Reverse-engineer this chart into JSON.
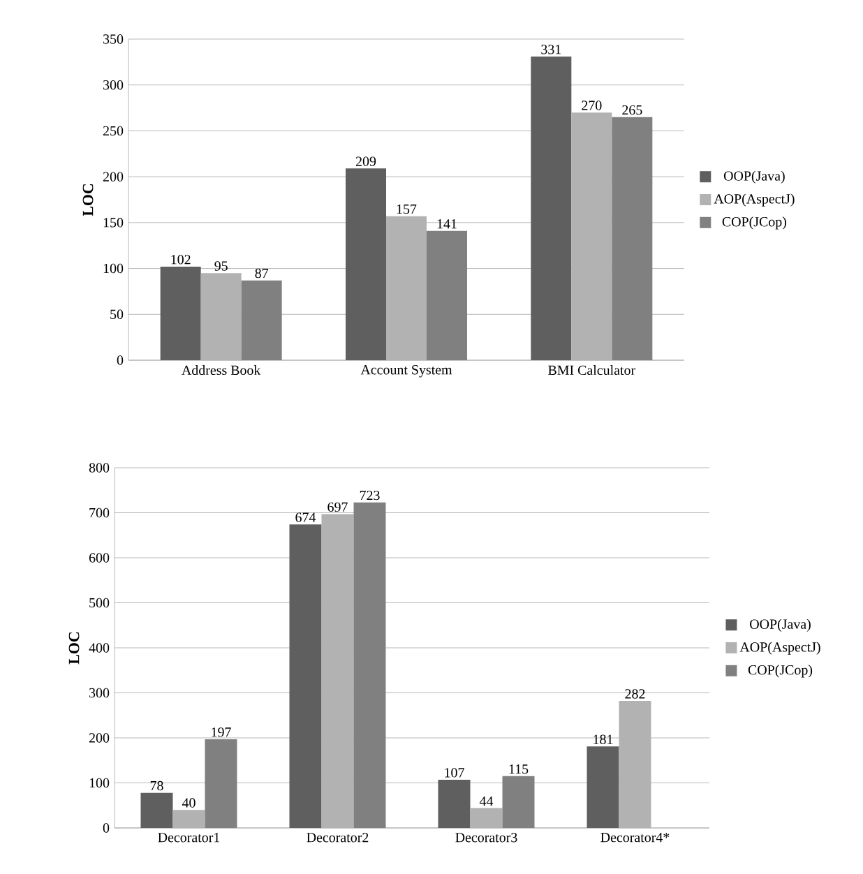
{
  "chart_data": [
    {
      "type": "bar",
      "ylabel": "LOC",
      "categories": [
        "Address Book",
        "Account System",
        "BMI Calculator"
      ],
      "ylim": [
        0,
        350
      ],
      "yticks": [
        0,
        50,
        100,
        150,
        200,
        250,
        300,
        350
      ],
      "grid": "y",
      "legend": "right",
      "data_labels": true,
      "series": [
        {
          "name": "OOP(Java)",
          "color": "#5f5f5f",
          "values": [
            102,
            209,
            331
          ]
        },
        {
          "name": "AOP(AspectJ)",
          "color": "#b2b2b2",
          "values": [
            95,
            157,
            270
          ]
        },
        {
          "name": "COP(JCop)",
          "color": "#808080",
          "values": [
            87,
            141,
            265
          ]
        }
      ]
    },
    {
      "type": "bar",
      "ylabel": "LOC",
      "categories": [
        "Decorator1",
        "Decorator2",
        "Decorator3",
        "Decorator4*"
      ],
      "ylim": [
        0,
        800
      ],
      "yticks": [
        0,
        100,
        200,
        300,
        400,
        500,
        600,
        700,
        800
      ],
      "grid": "y",
      "legend": "right",
      "data_labels": true,
      "series": [
        {
          "name": "OOP(Java)",
          "color": "#5f5f5f",
          "values": [
            78,
            674,
            107,
            181
          ]
        },
        {
          "name": "AOP(AspectJ)",
          "color": "#b2b2b2",
          "values": [
            40,
            697,
            44,
            282
          ]
        },
        {
          "name": "COP(JCop)",
          "color": "#808080",
          "values": [
            197,
            723,
            115,
            null
          ]
        }
      ]
    }
  ]
}
